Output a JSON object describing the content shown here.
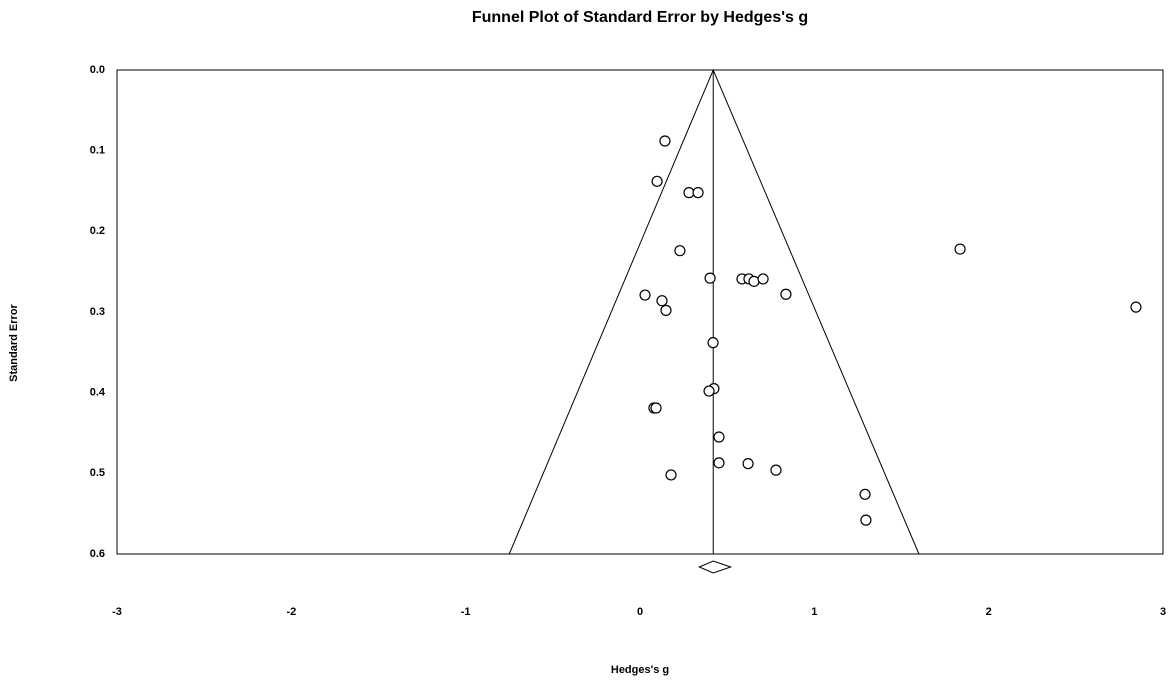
{
  "chart_data": {
    "type": "scatter",
    "title": "Funnel Plot of Standard Error by Hedges's g",
    "x_label": "Hedges's g",
    "y_label": "Standard Error",
    "xlim": [
      -3,
      3
    ],
    "xticks": [
      -3,
      -2,
      -1,
      0,
      1,
      2,
      3
    ],
    "ylim": [
      0.6,
      0
    ],
    "yticks": [
      {
        "value": 0,
        "label": "0.0"
      },
      0.1,
      0.2,
      0.3,
      0.4,
      0.5,
      0.6
    ],
    "color": "#000000",
    "grid": false,
    "funnel": {
      "x": [
        -0.75,
        0.42,
        1.6
      ],
      "y": [
        0.6,
        0,
        0.6
      ]
    },
    "summary": {
      "value": 0.42,
      "ci": [
        0.34,
        0.52
      ]
    },
    "x": [
      0.143,
      0.098,
      0.281,
      0.333,
      0.229,
      0.402,
      0.585,
      0.625,
      0.654,
      0.706,
      0.837,
      0.029,
      0.126,
      0.149,
      0.419,
      0.424,
      0.396,
      0.08,
      0.092,
      0.453,
      0.453,
      0.62,
      0.78,
      0.178,
      1.291,
      1.296,
      1.836,
      2.845
    ],
    "values": [
      0.088,
      0.138,
      0.152,
      0.152,
      0.224,
      0.258,
      0.259,
      0.259,
      0.262,
      0.259,
      0.278,
      0.279,
      0.286,
      0.298,
      0.338,
      0.395,
      0.398,
      0.419,
      0.419,
      0.455,
      0.487,
      0.488,
      0.496,
      0.502,
      0.526,
      0.558,
      0.222,
      0.294
    ]
  }
}
